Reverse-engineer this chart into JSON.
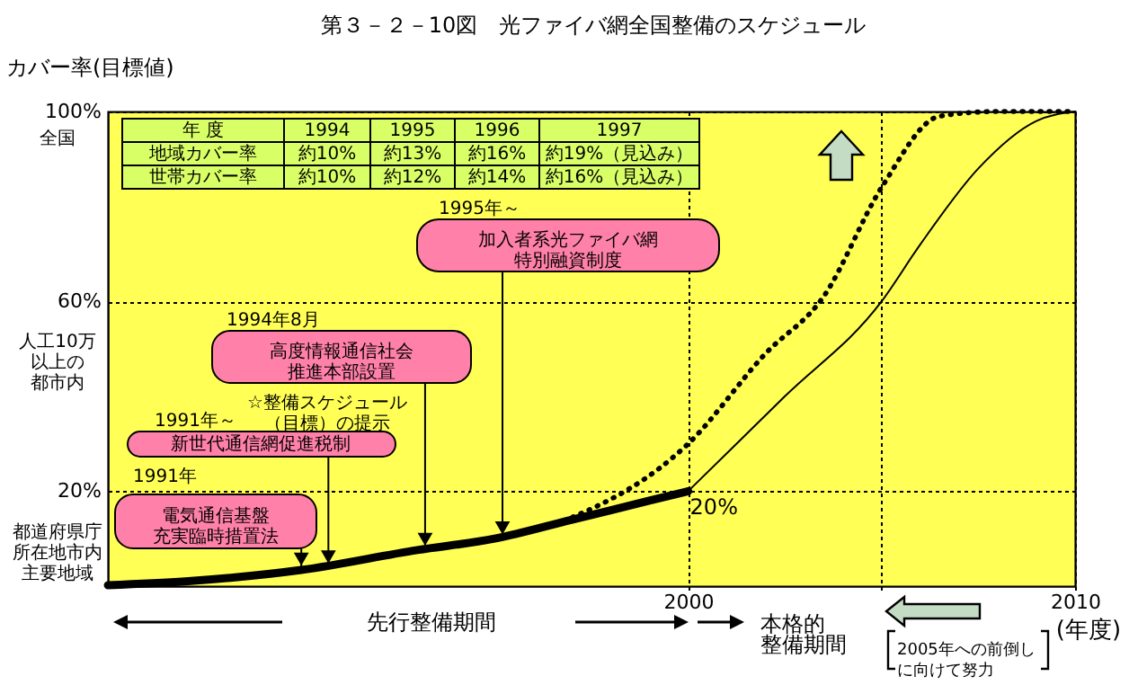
{
  "chart_data": {
    "type": "line",
    "title": "第３－２－10図　光ファイバ網全国整備のスケジュール",
    "ylabel": "カバー率(目標値)",
    "xlabel": "(年度)",
    "xlim": [
      1985,
      2010
    ],
    "xticks": [
      2000,
      {
        "value": 2005,
        "label": null
      },
      2010
    ],
    "ylim": [
      0,
      100
    ],
    "yticks": [
      {
        "value": 20,
        "label": "20%"
      },
      {
        "value": 60,
        "label": "60%"
      },
      {
        "value": 100,
        "label": "100%"
      }
    ],
    "grid": true,
    "series": [
      {
        "color": "#000000",
        "line_style": "solid",
        "x": [
          1985,
          1987,
          1990,
          1993,
          1995,
          1997,
          1998,
          2000
        ],
        "values": [
          0.2,
          1,
          3.4,
          7.6,
          10,
          14,
          16,
          20
        ]
      },
      {
        "color": "#000000",
        "line_style": "solid",
        "x": [
          2000,
          2002.5,
          2005,
          2006,
          2007.5,
          2009,
          2010
        ],
        "values": [
          20,
          40,
          60,
          72,
          88,
          98,
          100
        ]
      },
      {
        "color": "#000000",
        "line_style": "dotted",
        "x": [
          1995,
          1997,
          2000,
          2002,
          2003.5,
          2005,
          2006.5,
          2008,
          2010
        ],
        "values": [
          10,
          14.5,
          30,
          49,
          61,
          84,
          99,
          100,
          100
        ]
      }
    ],
    "annotations": [
      "1991年",
      {
        "text": "電気通信基盤充実臨時措置法",
        "x": 1990,
        "y": 3.4
      },
      "1991年～",
      {
        "text": "新世代通信網促進税制",
        "x": 1990.7,
        "y": 3.9
      },
      "1994年8月",
      {
        "text": "高度情報通信社会推進本部設置",
        "x": 1993.2,
        "y": 7.6
      },
      "☆整備スケジュール（目標）の提示",
      "1995年～",
      {
        "text": "加入者系光ファイバ網特別融資制度",
        "x": 1995.2,
        "y": 10
      },
      {
        "text": "20%",
        "x": 2000,
        "y": 20
      },
      "先行整備期間",
      "本格的整備期間",
      "2005年への前倒しに向けて努力",
      "年 度",
      "1994",
      "1995",
      "1996",
      "1997",
      "地域カバー率",
      "約10%",
      "約13%",
      "約16%",
      "約19%（見込み）",
      "世帯カバー率",
      "約10%",
      "約12%",
      "約14%",
      "約16%（見込み）",
      "全国",
      "人工10万以上の都市内",
      "都道府県庁所在地市内主要地域"
    ]
  }
}
